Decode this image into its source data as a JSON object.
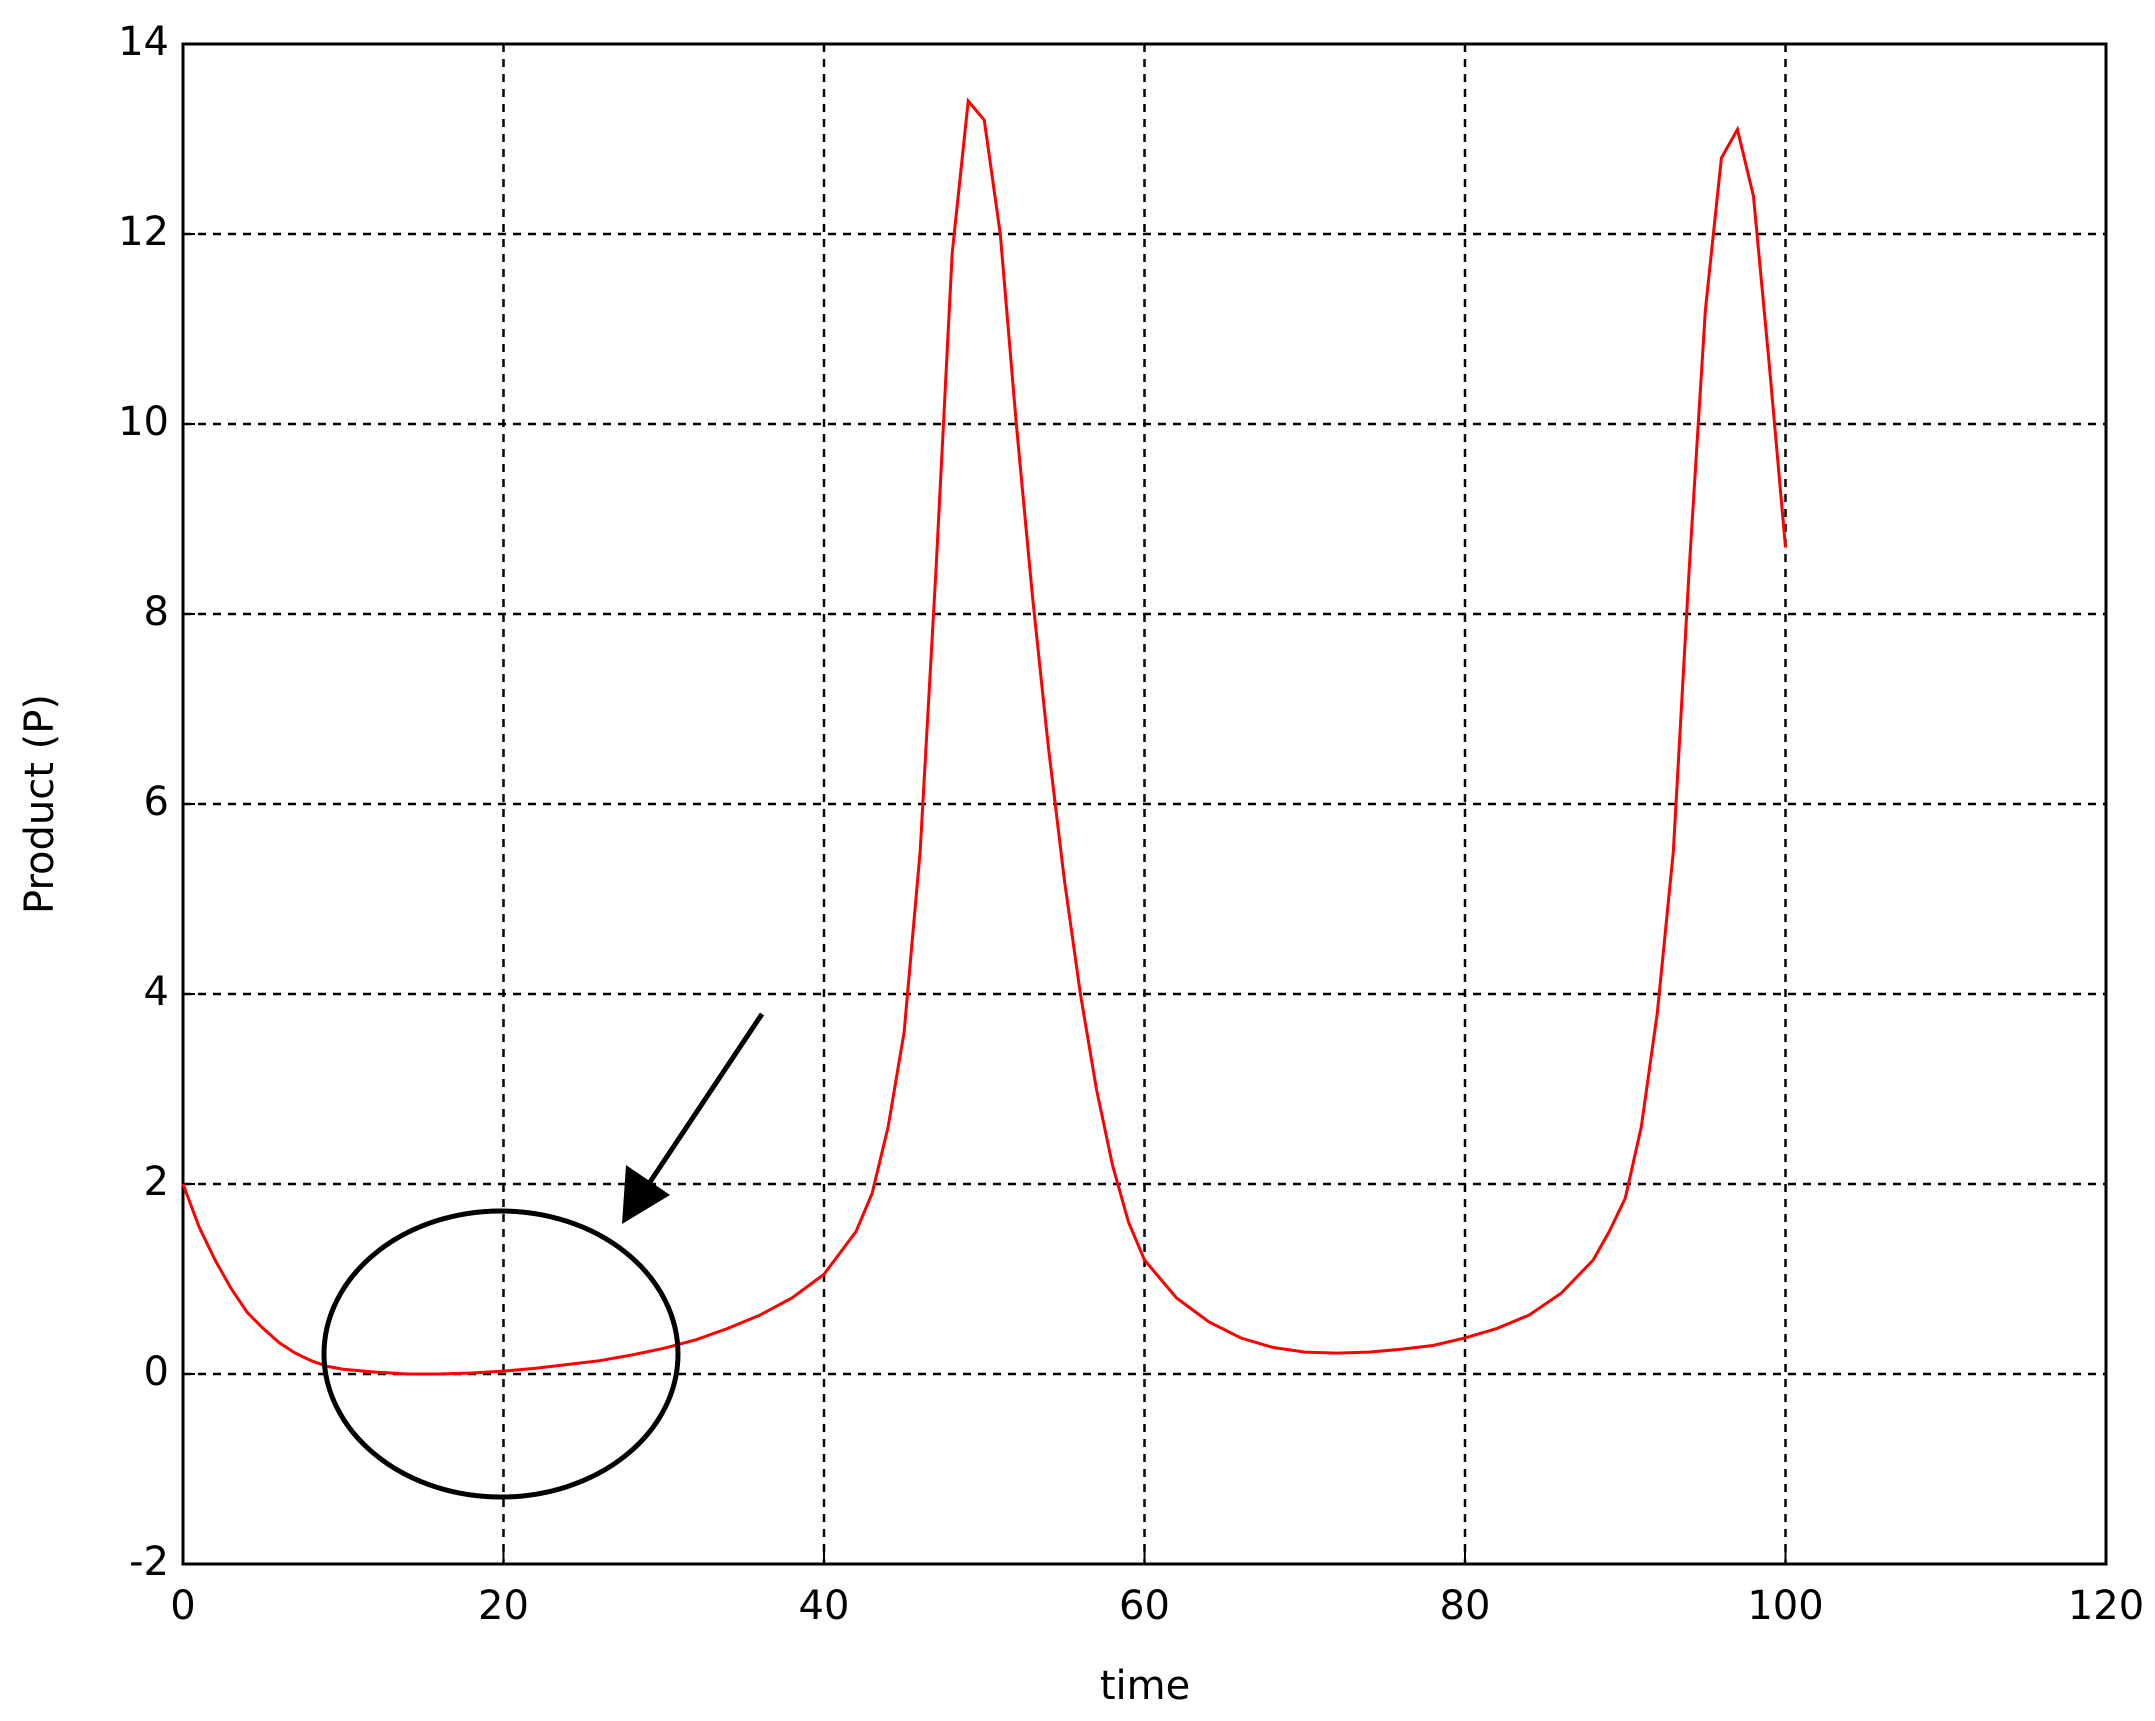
{
  "chart_data": {
    "type": "line",
    "x_label": "time",
    "y_label": "Product (P)",
    "x": [
      0,
      1,
      2,
      3,
      4,
      5,
      6,
      7,
      8,
      9,
      10,
      12,
      14,
      16,
      18,
      20,
      22,
      24,
      26,
      28,
      30,
      32,
      34,
      36,
      38,
      40,
      42,
      43,
      44,
      45,
      46,
      47,
      48,
      49,
      50,
      51,
      52,
      53,
      54,
      55,
      56,
      57,
      58,
      59,
      60,
      62,
      64,
      66,
      68,
      70,
      72,
      74,
      76,
      78,
      80,
      82,
      84,
      86,
      88,
      89,
      90,
      91,
      92,
      93,
      94,
      95,
      96,
      97,
      98,
      99,
      100
    ],
    "series": [
      {
        "color": "#ff0000",
        "values": [
          2.0,
          1.55,
          1.2,
          0.9,
          0.65,
          0.48,
          0.33,
          0.22,
          0.14,
          0.08,
          0.05,
          0.02,
          0.0,
          0.0,
          0.01,
          0.03,
          0.06,
          0.1,
          0.14,
          0.2,
          0.27,
          0.36,
          0.48,
          0.62,
          0.8,
          1.05,
          1.5,
          1.9,
          2.6,
          3.6,
          5.5,
          8.5,
          11.8,
          13.4,
          13.2,
          12.0,
          10.0,
          8.2,
          6.6,
          5.2,
          4.0,
          3.0,
          2.2,
          1.6,
          1.2,
          0.8,
          0.55,
          0.38,
          0.28,
          0.23,
          0.22,
          0.23,
          0.26,
          0.3,
          0.38,
          0.48,
          0.62,
          0.85,
          1.2,
          1.5,
          1.85,
          2.6,
          3.8,
          5.5,
          8.5,
          11.2,
          12.8,
          13.1,
          12.4,
          10.6,
          8.7
        ]
      }
    ],
    "xlim": [
      0,
      120
    ],
    "xticks": [
      0,
      20,
      40,
      60,
      80,
      100,
      120
    ],
    "ylim": [
      -2,
      14
    ],
    "yticks": [
      -2,
      0,
      2,
      4,
      6,
      8,
      10,
      12,
      14
    ],
    "grid": true
  }
}
